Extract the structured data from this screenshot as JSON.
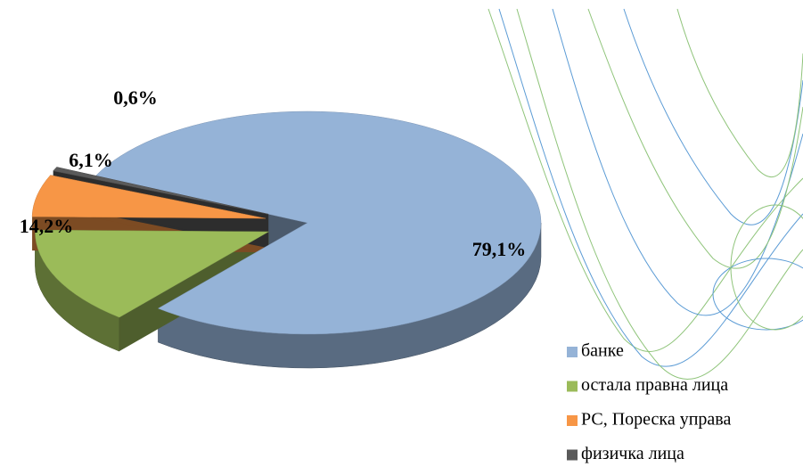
{
  "chart_data": {
    "type": "pie3d",
    "categories": [
      "банке",
      "остала правна лица",
      "РС, Пореска управа",
      "физичка лица"
    ],
    "values": [
      79.1,
      14.2,
      6.1,
      0.6
    ],
    "value_labels": [
      "79,1%",
      "14,2%",
      "6,1%",
      "0,6%"
    ],
    "colors": [
      "#95b3d7",
      "#9bbb59",
      "#f79646",
      "#5a5a5a"
    ],
    "legend": "right"
  }
}
